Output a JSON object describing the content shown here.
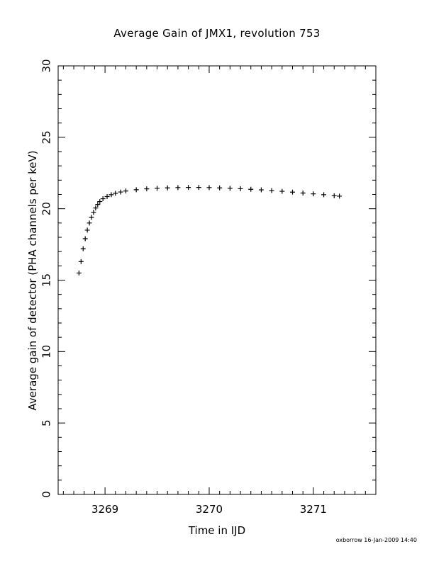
{
  "chart_data": {
    "type": "scatter",
    "title": "Average Gain of JMX1, revolution 753",
    "xlabel": "Time in IJD",
    "ylabel": "Average gain of detector (PHA channels per keV)",
    "xlim": [
      3268.55,
      3271.6
    ],
    "ylim": [
      0,
      30
    ],
    "x_ticks": [
      3269,
      3270,
      3271
    ],
    "y_ticks": [
      0,
      5,
      10,
      15,
      20,
      25,
      30
    ],
    "marker": "+",
    "series": [
      {
        "points": [
          [
            3268.75,
            15.5
          ],
          [
            3268.77,
            16.3
          ],
          [
            3268.79,
            17.2
          ],
          [
            3268.81,
            17.9
          ],
          [
            3268.83,
            18.5
          ],
          [
            3268.85,
            19.0
          ],
          [
            3268.87,
            19.4
          ],
          [
            3268.89,
            19.75
          ],
          [
            3268.91,
            20.05
          ],
          [
            3268.93,
            20.3
          ],
          [
            3268.95,
            20.5
          ],
          [
            3268.98,
            20.7
          ],
          [
            3269.02,
            20.85
          ],
          [
            3269.06,
            20.98
          ],
          [
            3269.1,
            21.08
          ],
          [
            3269.15,
            21.17
          ],
          [
            3269.2,
            21.24
          ],
          [
            3269.3,
            21.33
          ],
          [
            3269.4,
            21.39
          ],
          [
            3269.5,
            21.43
          ],
          [
            3269.6,
            21.46
          ],
          [
            3269.7,
            21.48
          ],
          [
            3269.8,
            21.49
          ],
          [
            3269.9,
            21.49
          ],
          [
            3270.0,
            21.48
          ],
          [
            3270.1,
            21.46
          ],
          [
            3270.2,
            21.43
          ],
          [
            3270.3,
            21.4
          ],
          [
            3270.4,
            21.36
          ],
          [
            3270.5,
            21.32
          ],
          [
            3270.6,
            21.27
          ],
          [
            3270.7,
            21.22
          ],
          [
            3270.8,
            21.16
          ],
          [
            3270.9,
            21.1
          ],
          [
            3271.0,
            21.04
          ],
          [
            3271.1,
            20.98
          ],
          [
            3271.2,
            20.91
          ],
          [
            3271.25,
            20.88
          ]
        ]
      }
    ]
  },
  "footer": "oxborrow 16-Jan-2009 14:40"
}
